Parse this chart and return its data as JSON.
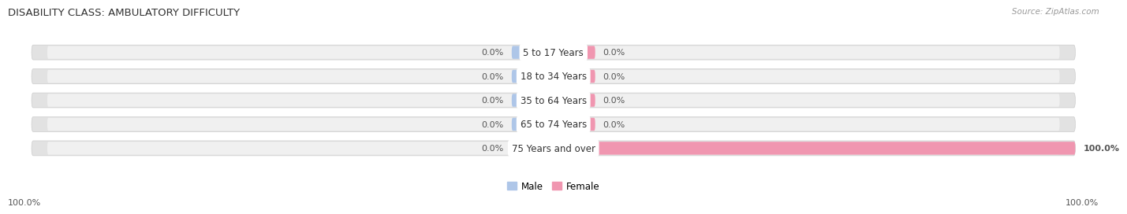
{
  "title": "DISABILITY CLASS: AMBULATORY DIFFICULTY",
  "source": "Source: ZipAtlas.com",
  "categories": [
    "5 to 17 Years",
    "18 to 34 Years",
    "35 to 64 Years",
    "65 to 74 Years",
    "75 Years and over"
  ],
  "male_values": [
    0.0,
    0.0,
    0.0,
    0.0,
    0.0
  ],
  "female_values": [
    0.0,
    0.0,
    0.0,
    0.0,
    100.0
  ],
  "male_color": "#aec6e8",
  "female_color": "#f096b0",
  "bar_bg_color": "#e2e2e2",
  "bar_bg_inner": "#f0f0f0",
  "male_stub": 8.0,
  "female_stub": 8.0,
  "bar_height": 0.62,
  "xlim_left": -100,
  "xlim_right": 100,
  "title_fontsize": 9.5,
  "source_fontsize": 7.5,
  "label_fontsize": 8,
  "category_fontsize": 8.5,
  "axis_label_fontsize": 8,
  "legend_fontsize": 8.5,
  "left_label": "100.0%",
  "right_label": "100.0%",
  "background_color": "#ffffff",
  "bar_outline_color": "#cccccc",
  "text_color": "#333333",
  "value_color": "#555555"
}
